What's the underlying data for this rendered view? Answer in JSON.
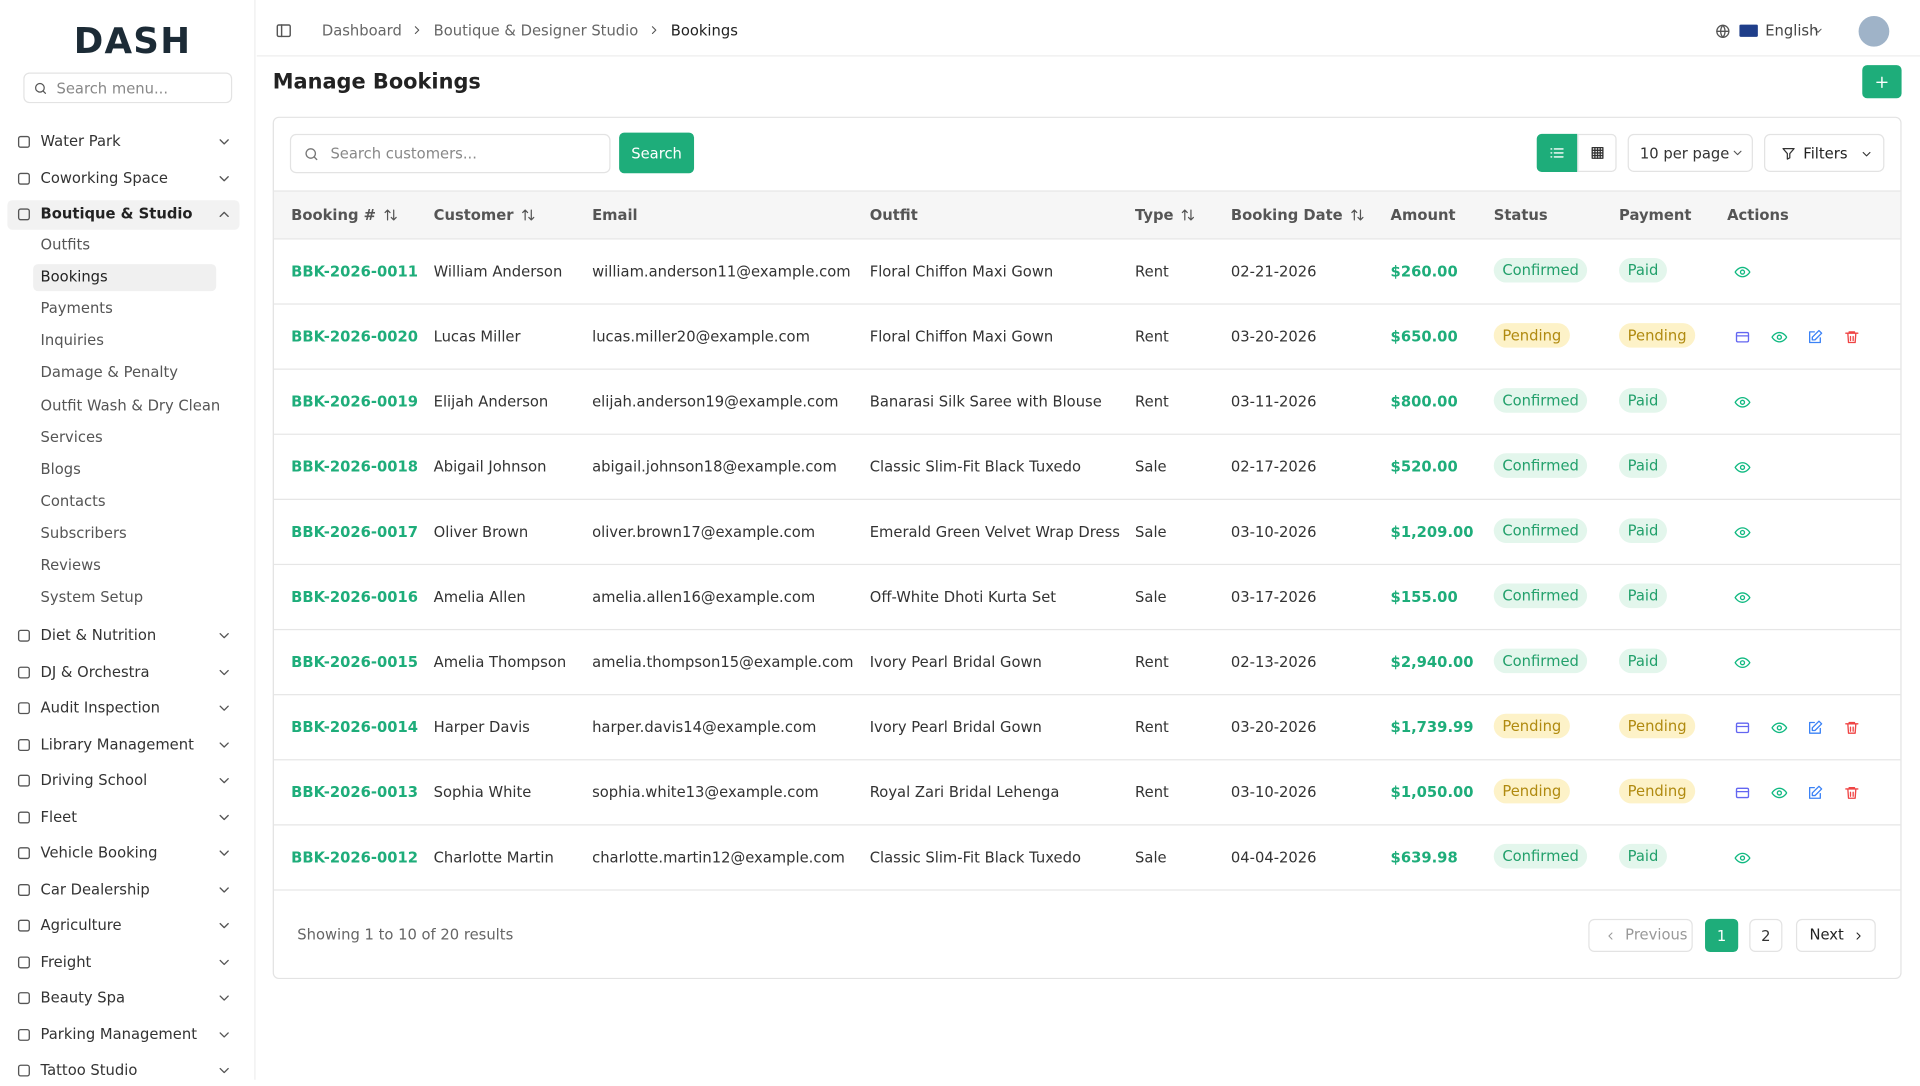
{
  "brand": "DASH",
  "sidebar": {
    "search_placeholder": "Search menu...",
    "items": [
      {
        "label": "Water Park"
      },
      {
        "label": "Coworking Space"
      },
      {
        "label": "Boutique & Studio",
        "open": true,
        "children": [
          "Outfits",
          "Bookings",
          "Payments",
          "Inquiries",
          "Damage & Penalty",
          "Outfit Wash & Dry Clean",
          "Services",
          "Blogs",
          "Contacts",
          "Subscribers",
          "Reviews",
          "System Setup"
        ],
        "active_child": 1
      },
      {
        "label": "Diet & Nutrition"
      },
      {
        "label": "DJ & Orchestra"
      },
      {
        "label": "Audit Inspection"
      },
      {
        "label": "Library Management"
      },
      {
        "label": "Driving School"
      },
      {
        "label": "Fleet"
      },
      {
        "label": "Vehicle Booking"
      },
      {
        "label": "Car Dealership"
      },
      {
        "label": "Agriculture"
      },
      {
        "label": "Freight"
      },
      {
        "label": "Beauty Spa"
      },
      {
        "label": "Parking Management"
      },
      {
        "label": "Tattoo Studio"
      }
    ]
  },
  "header": {
    "breadcrumbs": [
      "Dashboard",
      "Boutique & Designer Studio",
      "Bookings"
    ],
    "language": "English"
  },
  "page": {
    "title": "Manage Bookings"
  },
  "toolbar": {
    "search_placeholder": "Search customers...",
    "search_button": "Search",
    "per_page": "10 per page",
    "filters": "Filters"
  },
  "table": {
    "columns": [
      {
        "label": "Booking #",
        "sortable": true
      },
      {
        "label": "Customer",
        "sortable": true
      },
      {
        "label": "Email"
      },
      {
        "label": "Outfit"
      },
      {
        "label": "Type",
        "sortable": true
      },
      {
        "label": "Booking Date",
        "sortable": true
      },
      {
        "label": "Amount"
      },
      {
        "label": "Status"
      },
      {
        "label": "Payment"
      },
      {
        "label": "Actions"
      }
    ],
    "rows": [
      [
        "BBK-2026-0011",
        "William Anderson",
        "william.anderson11@example.com",
        "Floral Chiffon Maxi Gown",
        "Rent",
        "02-21-2026",
        "$260.00",
        "Confirmed",
        "Paid"
      ],
      [
        "BBK-2026-0020",
        "Lucas Miller",
        "lucas.miller20@example.com",
        "Floral Chiffon Maxi Gown",
        "Rent",
        "03-20-2026",
        "$650.00",
        "Pending",
        "Pending"
      ],
      [
        "BBK-2026-0019",
        "Elijah Anderson",
        "elijah.anderson19@example.com",
        "Banarasi Silk Saree with Blouse",
        "Rent",
        "03-11-2026",
        "$800.00",
        "Confirmed",
        "Paid"
      ],
      [
        "BBK-2026-0018",
        "Abigail Johnson",
        "abigail.johnson18@example.com",
        "Classic Slim-Fit Black Tuxedo",
        "Sale",
        "02-17-2026",
        "$520.00",
        "Confirmed",
        "Paid"
      ],
      [
        "BBK-2026-0017",
        "Oliver Brown",
        "oliver.brown17@example.com",
        "Emerald Green Velvet Wrap Dress",
        "Sale",
        "03-10-2026",
        "$1,209.00",
        "Confirmed",
        "Paid"
      ],
      [
        "BBK-2026-0016",
        "Amelia Allen",
        "amelia.allen16@example.com",
        "Off-White Dhoti Kurta Set",
        "Sale",
        "03-17-2026",
        "$155.00",
        "Confirmed",
        "Paid"
      ],
      [
        "BBK-2026-0015",
        "Amelia Thompson",
        "amelia.thompson15@example.com",
        "Ivory Pearl Bridal Gown",
        "Rent",
        "02-13-2026",
        "$2,940.00",
        "Confirmed",
        "Paid"
      ],
      [
        "BBK-2026-0014",
        "Harper Davis",
        "harper.davis14@example.com",
        "Ivory Pearl Bridal Gown",
        "Rent",
        "03-20-2026",
        "$1,739.99",
        "Pending",
        "Pending"
      ],
      [
        "BBK-2026-0013",
        "Sophia White",
        "sophia.white13@example.com",
        "Royal Zari Bridal Lehenga",
        "Rent",
        "03-10-2026",
        "$1,050.00",
        "Pending",
        "Pending"
      ],
      [
        "BBK-2026-0012",
        "Charlotte Martin",
        "charlotte.martin12@example.com",
        "Classic Slim-Fit Black Tuxedo",
        "Sale",
        "04-04-2026",
        "$639.98",
        "Confirmed",
        "Paid"
      ]
    ]
  },
  "pagination": {
    "summary": "Showing 1 to 10 of 20 results",
    "previous": "Previous",
    "pages": [
      "1",
      "2"
    ],
    "current": 0,
    "next": "Next"
  }
}
